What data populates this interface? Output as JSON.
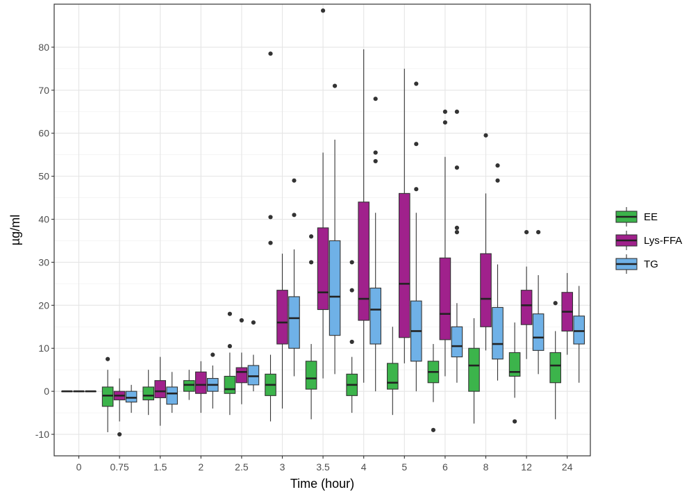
{
  "chart_data": {
    "type": "boxplot",
    "title": "",
    "xlabel": "Time (hour)",
    "ylabel": "µg/ml",
    "ylim": [
      -15,
      90
    ],
    "yticks": [
      -10,
      0,
      10,
      20,
      30,
      40,
      50,
      60,
      70,
      80
    ],
    "ytick_labels": [
      "-10",
      "0",
      "10",
      "20",
      "30",
      "40",
      "50",
      "60",
      "70",
      "80"
    ],
    "categories": [
      "0",
      "0.75",
      "1.5",
      "2",
      "2.5",
      "3",
      "3.5",
      "4",
      "5",
      "6",
      "8",
      "12",
      "24"
    ],
    "grid": true,
    "legend_position": "right",
    "series": [
      {
        "name": "EE",
        "color": "#3cb44b",
        "boxes": [
          {
            "low": 0,
            "q1": 0,
            "median": 0,
            "q3": 0,
            "high": 0,
            "outliers": []
          },
          {
            "low": -9.5,
            "q1": -3.5,
            "median": -1,
            "q3": 1,
            "high": 5,
            "outliers": [
              7.5
            ]
          },
          {
            "low": -5.5,
            "q1": -2,
            "median": -1,
            "q3": 1,
            "high": 5,
            "outliers": []
          },
          {
            "low": -2,
            "q1": 0,
            "median": 1.5,
            "q3": 2.5,
            "high": 5,
            "outliers": []
          },
          {
            "low": -5.5,
            "q1": -0.5,
            "median": 0.5,
            "q3": 3.5,
            "high": 9,
            "outliers": [
              10.5,
              18
            ]
          },
          {
            "low": -7,
            "q1": -1,
            "median": 1.5,
            "q3": 4,
            "high": 8.5,
            "outliers": [
              34.5,
              40.5,
              78.5
            ]
          },
          {
            "low": -6.5,
            "q1": 0.5,
            "median": 3,
            "q3": 7,
            "high": 11,
            "outliers": [
              30,
              36
            ]
          },
          {
            "low": -5,
            "q1": -1,
            "median": 1.5,
            "q3": 4,
            "high": 8,
            "outliers": [
              11.5,
              23.5,
              30
            ]
          },
          {
            "low": -5.5,
            "q1": 0.5,
            "median": 2,
            "q3": 6.5,
            "high": 15,
            "outliers": []
          },
          {
            "low": -2.5,
            "q1": 2,
            "median": 4.5,
            "q3": 7,
            "high": 11,
            "outliers": [
              -9
            ]
          },
          {
            "low": -7.5,
            "q1": 0,
            "median": 6,
            "q3": 10,
            "high": 17,
            "outliers": []
          },
          {
            "low": -1.5,
            "q1": 3.5,
            "median": 4.5,
            "q3": 9,
            "high": 16,
            "outliers": [
              -7
            ]
          },
          {
            "low": -6.5,
            "q1": 2,
            "median": 6,
            "q3": 9,
            "high": 14,
            "outliers": [
              20.5
            ]
          }
        ]
      },
      {
        "name": "Lys-FFA",
        "color": "#a0218c",
        "boxes": [
          {
            "low": 0,
            "q1": 0,
            "median": 0,
            "q3": 0,
            "high": 0,
            "outliers": []
          },
          {
            "low": -7,
            "q1": -2,
            "median": -1,
            "q3": 0,
            "high": 3,
            "outliers": [
              -10
            ]
          },
          {
            "low": -8,
            "q1": -1.5,
            "median": 0,
            "q3": 2.5,
            "high": 8,
            "outliers": []
          },
          {
            "low": -5,
            "q1": -0.5,
            "median": 1.5,
            "q3": 4.5,
            "high": 7,
            "outliers": []
          },
          {
            "low": -3,
            "q1": 2,
            "median": 4.5,
            "q3": 5.5,
            "high": 9,
            "outliers": [
              16.5
            ]
          },
          {
            "low": -4,
            "q1": 11,
            "median": 16,
            "q3": 23.5,
            "high": 32,
            "outliers": []
          },
          {
            "low": 3,
            "q1": 19,
            "median": 23,
            "q3": 38,
            "high": 55.5,
            "outliers": [
              88.5
            ]
          },
          {
            "low": 2,
            "q1": 16.5,
            "median": 21.5,
            "q3": 44,
            "high": 79.5,
            "outliers": []
          },
          {
            "low": 6.5,
            "q1": 12.5,
            "median": 25,
            "q3": 46,
            "high": 75,
            "outliers": []
          },
          {
            "low": 3.5,
            "q1": 12,
            "median": 18,
            "q3": 31,
            "high": 54.5,
            "outliers": [
              62.5,
              65
            ]
          },
          {
            "low": 9.5,
            "q1": 15,
            "median": 21.5,
            "q3": 32,
            "high": 46,
            "outliers": [
              59.5
            ]
          },
          {
            "low": 7.5,
            "q1": 15.5,
            "median": 20,
            "q3": 23.5,
            "high": 29,
            "outliers": [
              37
            ]
          },
          {
            "low": 8.5,
            "q1": 14,
            "median": 18.5,
            "q3": 23,
            "high": 27.5,
            "outliers": []
          }
        ]
      },
      {
        "name": "TG",
        "color": "#6fb1e7",
        "boxes": [
          {
            "low": 0,
            "q1": 0,
            "median": 0,
            "q3": 0,
            "high": 0,
            "outliers": []
          },
          {
            "low": -5,
            "q1": -2.5,
            "median": -1.5,
            "q3": 0,
            "high": 1.5,
            "outliers": []
          },
          {
            "low": -5,
            "q1": -3,
            "median": -0.5,
            "q3": 1,
            "high": 4.5,
            "outliers": []
          },
          {
            "low": -4,
            "q1": 0,
            "median": 1.5,
            "q3": 3,
            "high": 6,
            "outliers": [
              8.5
            ]
          },
          {
            "low": 0,
            "q1": 1.5,
            "median": 3.5,
            "q3": 6,
            "high": 8.5,
            "outliers": [
              16
            ]
          },
          {
            "low": 3.5,
            "q1": 10,
            "median": 17,
            "q3": 22,
            "high": 33,
            "outliers": [
              41,
              49
            ]
          },
          {
            "low": 4,
            "q1": 13,
            "median": 22,
            "q3": 35,
            "high": 58.5,
            "outliers": [
              71
            ]
          },
          {
            "low": 0,
            "q1": 11,
            "median": 19,
            "q3": 24,
            "high": 41.5,
            "outliers": [
              53.5,
              55.5,
              68
            ]
          },
          {
            "low": 0,
            "q1": 7,
            "median": 14,
            "q3": 21,
            "high": 41.5,
            "outliers": [
              47,
              57.5,
              71.5
            ]
          },
          {
            "low": 2,
            "q1": 8,
            "median": 10.5,
            "q3": 15,
            "high": 20.5,
            "outliers": [
              37,
              38,
              52,
              65
            ]
          },
          {
            "low": 2.5,
            "q1": 7.5,
            "median": 11,
            "q3": 19.5,
            "high": 29.5,
            "outliers": [
              49,
              52.5
            ]
          },
          {
            "low": 4,
            "q1": 9.5,
            "median": 12.5,
            "q3": 18,
            "high": 27,
            "outliers": [
              37
            ]
          },
          {
            "low": 2,
            "q1": 11,
            "median": 14,
            "q3": 17.5,
            "high": 24.5,
            "outliers": []
          }
        ]
      }
    ]
  }
}
